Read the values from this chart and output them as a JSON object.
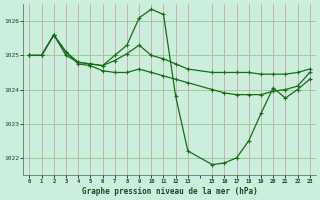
{
  "title": "Graphe pression niveau de la mer (hPa)",
  "background_color": "#cceedd",
  "line_color": "#1a6b1a",
  "grid_color_h": "#99cc99",
  "grid_color_v": "#cc9999",
  "xlim": [
    -0.5,
    23.5
  ],
  "ylim": [
    1021.5,
    1026.5
  ],
  "yticks": [
    1022,
    1023,
    1024,
    1025,
    1026
  ],
  "xtick_labels": [
    "0",
    "1",
    "2",
    "3",
    "4",
    "5",
    "6",
    "7",
    "8",
    "9",
    "10",
    "11",
    "12",
    "13",
    "",
    "15",
    "16",
    "17",
    "18",
    "19",
    "20",
    "21",
    "22",
    "23"
  ],
  "xtick_positions": [
    0,
    1,
    2,
    3,
    4,
    5,
    6,
    7,
    8,
    9,
    10,
    11,
    12,
    13,
    14,
    15,
    16,
    17,
    18,
    19,
    20,
    21,
    22,
    23
  ],
  "vgrid_positions": [
    0,
    1,
    2,
    3,
    4,
    5,
    6,
    7,
    8,
    9,
    10,
    11,
    12,
    13,
    15,
    16,
    17,
    18,
    19,
    20,
    21,
    22,
    23
  ],
  "series": [
    {
      "x": [
        0,
        1,
        2,
        3,
        4,
        5,
        6,
        7,
        8,
        9,
        10,
        11,
        12,
        13,
        15,
        16,
        17,
        18,
        19,
        20,
        21,
        22,
        23
      ],
      "y": [
        1025.0,
        1025.0,
        1025.6,
        1025.1,
        1024.8,
        1024.75,
        1024.7,
        1025.0,
        1025.3,
        1026.1,
        1026.35,
        1026.2,
        1023.8,
        1022.2,
        1021.8,
        1021.85,
        1022.0,
        1022.5,
        1023.3,
        1024.05,
        1023.75,
        1024.0,
        1024.3
      ]
    },
    {
      "x": [
        0,
        1,
        2,
        3,
        4,
        5,
        6,
        7,
        8,
        9,
        10,
        11,
        12,
        13,
        15,
        16,
        17,
        18,
        19,
        20,
        21,
        22,
        23
      ],
      "y": [
        1025.0,
        1025.0,
        1025.6,
        1025.0,
        1024.8,
        1024.75,
        1024.7,
        1024.85,
        1025.05,
        1025.3,
        1025.0,
        1024.9,
        1024.75,
        1024.6,
        1024.5,
        1024.5,
        1024.5,
        1024.5,
        1024.45,
        1024.45,
        1024.45,
        1024.5,
        1024.6
      ]
    },
    {
      "x": [
        0,
        1,
        2,
        3,
        4,
        5,
        6,
        7,
        8,
        9,
        10,
        11,
        12,
        13,
        15,
        16,
        17,
        18,
        19,
        20,
        21,
        22,
        23
      ],
      "y": [
        1025.0,
        1025.0,
        1025.6,
        1025.1,
        1024.75,
        1024.7,
        1024.55,
        1024.5,
        1024.5,
        1024.6,
        1024.5,
        1024.4,
        1024.3,
        1024.2,
        1024.0,
        1023.9,
        1023.85,
        1023.85,
        1023.85,
        1023.95,
        1024.0,
        1024.1,
        1024.5
      ]
    }
  ]
}
